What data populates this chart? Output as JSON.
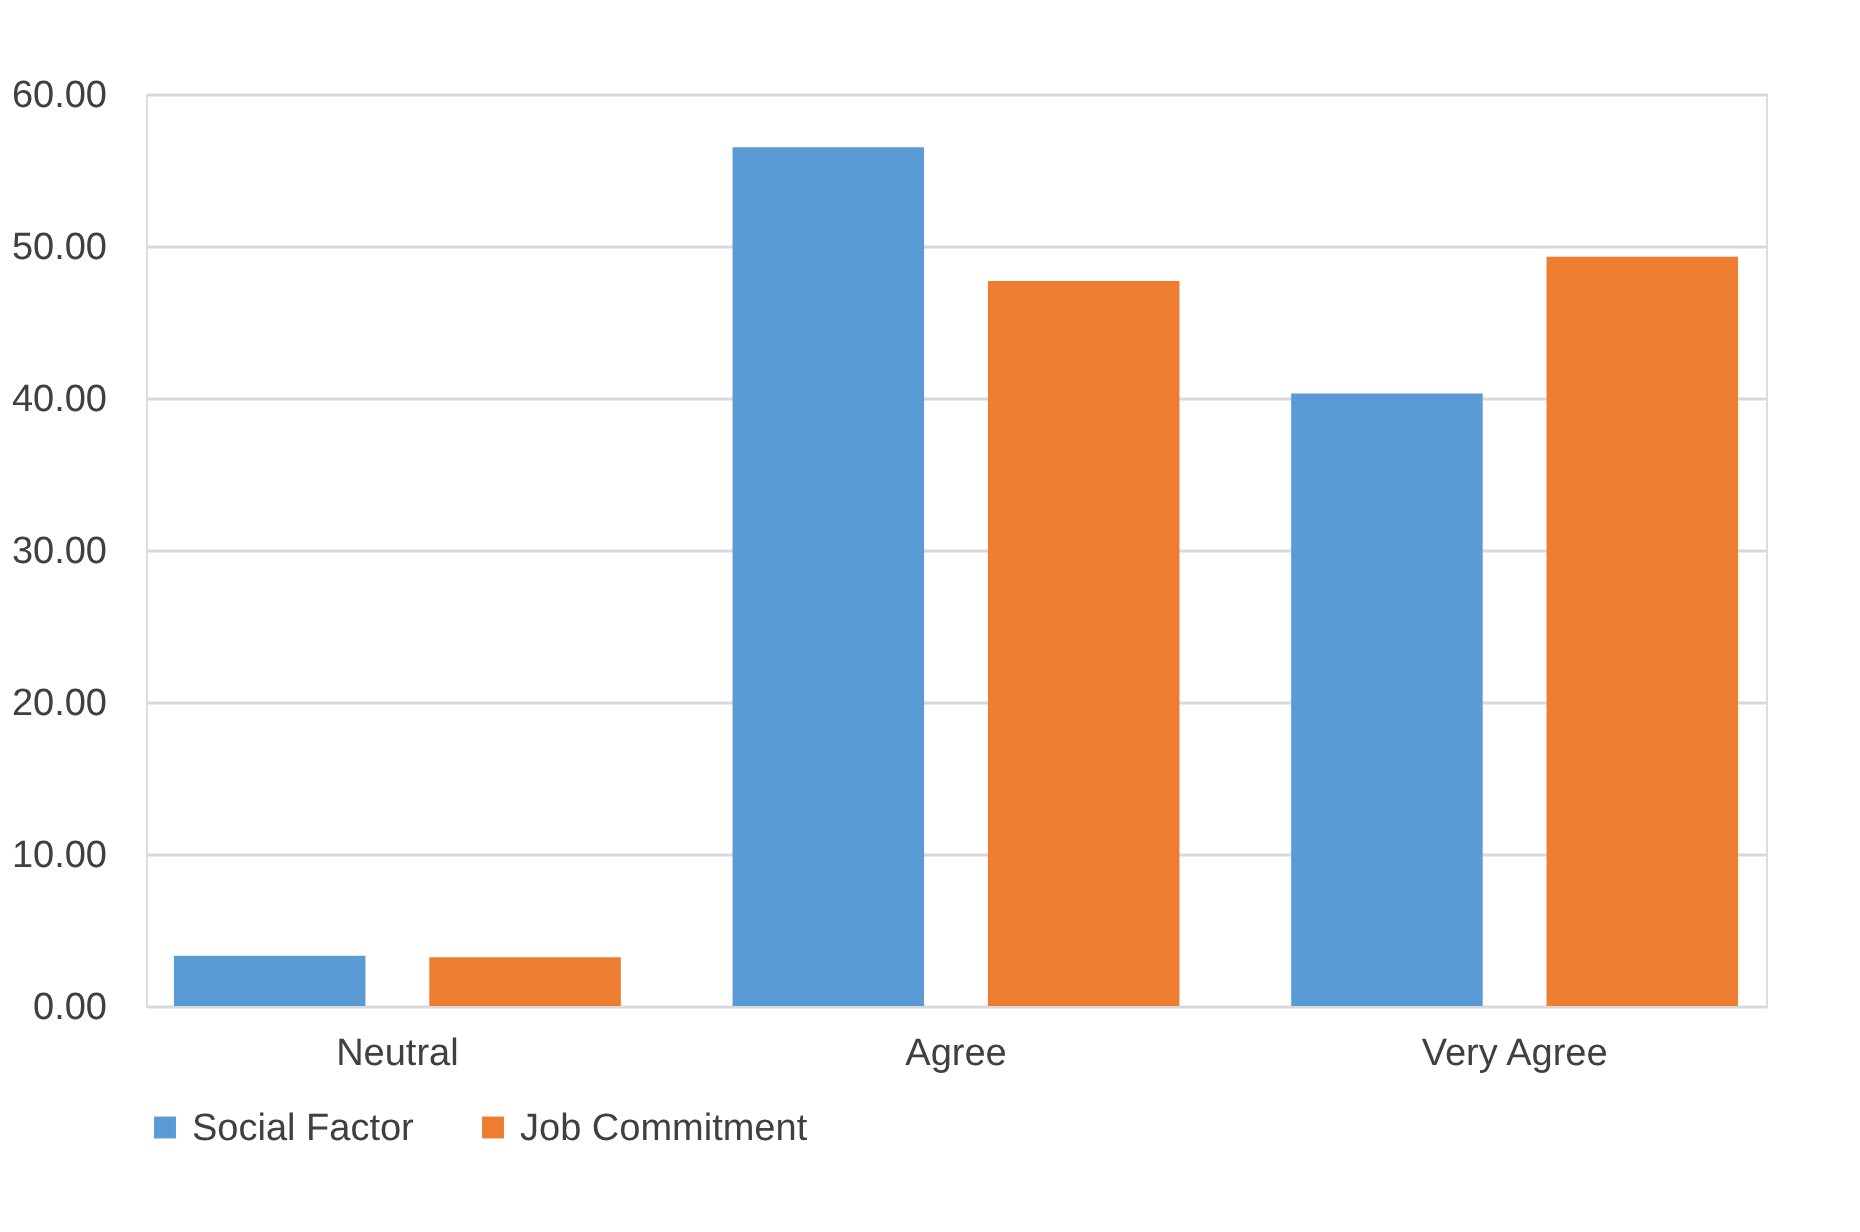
{
  "chart_data": {
    "type": "bar",
    "categories": [
      "Neutral",
      "Agree",
      "Very Agree"
    ],
    "series": [
      {
        "name": "Social Factor",
        "color": "#5b9bd5",
        "values": [
          3.3,
          56.5,
          40.3
        ]
      },
      {
        "name": "Job Commitment",
        "color": "#ed7d31",
        "values": [
          3.2,
          47.7,
          49.3
        ]
      }
    ],
    "ylim": [
      0,
      60
    ],
    "yticks": [
      {
        "value": 0,
        "label": "0.00"
      },
      {
        "value": 10,
        "label": "10.00"
      },
      {
        "value": 20,
        "label": "20.00"
      },
      {
        "value": 30,
        "label": "30.00"
      },
      {
        "value": 40,
        "label": "40.00"
      },
      {
        "value": 50,
        "label": "50.00"
      },
      {
        "value": 60,
        "label": "60.00"
      }
    ],
    "grid": "y",
    "legend": "bottom"
  }
}
